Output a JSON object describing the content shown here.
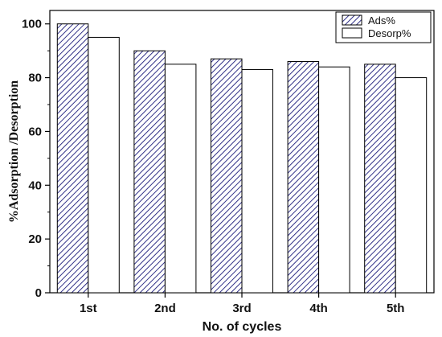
{
  "chart_data": {
    "type": "bar",
    "categories": [
      "1st",
      "2nd",
      "3rd",
      "4th",
      "5th"
    ],
    "series": [
      {
        "name": "Ads%",
        "values": [
          100,
          90,
          87,
          86,
          85
        ],
        "fill": "hatched",
        "color": "#1a1a7a"
      },
      {
        "name": "Desorp%",
        "values": [
          95,
          85,
          83,
          84,
          80
        ],
        "fill": "white",
        "color": "#000000"
      }
    ],
    "xlabel": "No. of cycles",
    "ylabel": "%Adsorption /Desorption",
    "ylim": [
      0,
      105
    ],
    "yticks": [
      0,
      20,
      40,
      60,
      80,
      100
    ],
    "grid": false,
    "legend_position": "top-right"
  }
}
